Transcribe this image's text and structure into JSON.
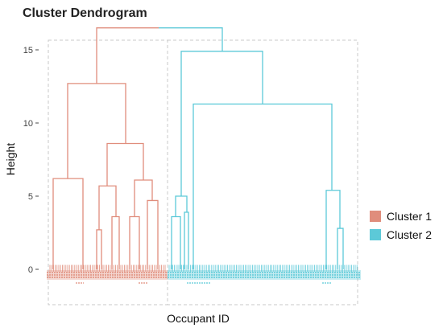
{
  "chart_data": {
    "type": "dendrogram",
    "title": "Cluster Dendrogram",
    "xlabel": "Occupant ID",
    "ylabel": "Height",
    "ylim": [
      0,
      17
    ],
    "yticks": [
      0,
      5,
      10,
      15
    ],
    "grid": false,
    "legend_position": "right",
    "series": [
      {
        "name": "Cluster 1",
        "color": "#e08d7c"
      },
      {
        "name": "Cluster 2",
        "color": "#5cc9d8"
      }
    ],
    "root_height": 16.5,
    "merges": [
      {
        "cluster": 1,
        "x": [
          0,
          60
        ],
        "height": 0,
        "children": []
      }
    ]
  }
}
